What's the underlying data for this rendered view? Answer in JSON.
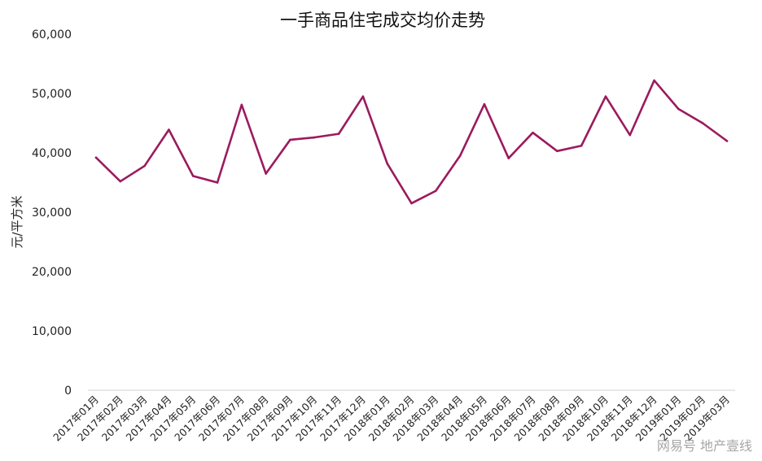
{
  "chart_data": {
    "type": "line",
    "title": "一手商品住宅成交均价走势",
    "ylabel": "元/平方米",
    "xlabel": "",
    "ylim": [
      0,
      60000
    ],
    "yticks": [
      0,
      10000,
      20000,
      30000,
      40000,
      50000,
      60000
    ],
    "ytick_labels": [
      "0",
      "10,000",
      "20,000",
      "30,000",
      "40,000",
      "50,000",
      "60,000"
    ],
    "grid": false,
    "legend": "none",
    "line_color": "#9b1b5e",
    "categories": [
      "2017年01月",
      "2017年02月",
      "2017年03月",
      "2017年04月",
      "2017年05月",
      "2017年06月",
      "2017年07月",
      "2017年08月",
      "2017年09月",
      "2017年10月",
      "2017年11月",
      "2017年12月",
      "2018年01月",
      "2018年02月",
      "2018年03月",
      "2018年04月",
      "2018年05月",
      "2018年06月",
      "2018年07月",
      "2018年08月",
      "2018年09月",
      "2018年10月",
      "2018年11月",
      "2018年12月",
      "2019年01月",
      "2019年02月",
      "2019年03月"
    ],
    "series": [
      {
        "values": [
          39200,
          35200,
          37800,
          43900,
          36100,
          35000,
          48100,
          36500,
          42200,
          42600,
          43200,
          49500,
          38200,
          31500,
          33600,
          39500,
          48200,
          39100,
          43400,
          40300,
          41200,
          49500,
          43000,
          52200,
          47400,
          45000,
          42000
        ]
      }
    ]
  },
  "watermark": "网易号  地产壹线"
}
